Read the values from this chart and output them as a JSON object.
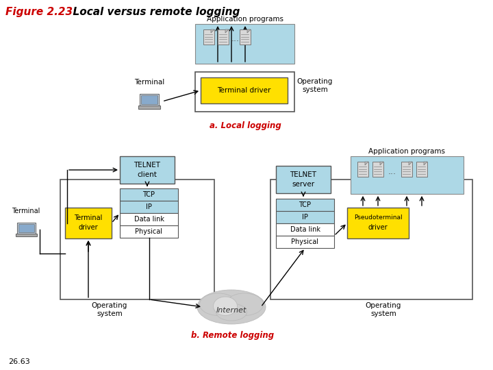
{
  "title_fig": "Figure 2.23:",
  "title_desc": "  Local versus remote logging",
  "subtitle_a": "a. Local logging",
  "subtitle_b": "b. Remote logging",
  "footer": "26.63",
  "colors": {
    "yellow": "#FFE000",
    "light_blue": "#ADD8E6",
    "white": "#FFFFFF",
    "black": "#000000",
    "red": "#CC0000",
    "bg": "#FFFFFF",
    "border": "#555555",
    "doc_gray": "#AAAAAA",
    "cloud_light": "#D8D8D8",
    "cloud_dark": "#BBBBBB"
  }
}
